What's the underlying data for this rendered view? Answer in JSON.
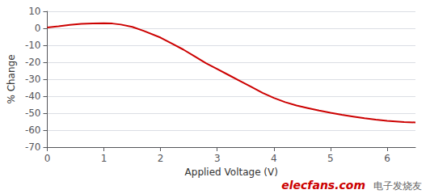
{
  "chart_data": {
    "type": "line",
    "xlabel": "Applied Voltage (V)",
    "ylabel": "% Change",
    "x": [
      0.0,
      0.2,
      0.4,
      0.6,
      0.8,
      1.0,
      1.15,
      1.3,
      1.5,
      1.7,
      2.0,
      2.2,
      2.4,
      2.6,
      2.8,
      3.0,
      3.2,
      3.4,
      3.6,
      3.8,
      4.0,
      4.2,
      4.4,
      4.6,
      4.8,
      5.0,
      5.2,
      5.4,
      5.6,
      5.8,
      6.0,
      6.3,
      6.5
    ],
    "values": [
      0.5,
      1.2,
      2.0,
      2.6,
      2.9,
      3.0,
      2.8,
      2.2,
      0.8,
      -1.5,
      -5.5,
      -9.0,
      -12.5,
      -16.5,
      -20.5,
      -24.0,
      -27.5,
      -31.0,
      -34.5,
      -38.0,
      -41.0,
      -43.5,
      -45.5,
      -47.0,
      -48.5,
      -49.8,
      -51.0,
      -52.0,
      -53.0,
      -53.8,
      -54.5,
      -55.2,
      -55.5
    ],
    "color": "#cc0000",
    "xlim": [
      0,
      6.5
    ],
    "xticks": [
      0,
      1,
      2,
      3,
      4,
      5,
      6
    ],
    "ylim": [
      -70,
      10
    ],
    "yticks": [
      -70,
      -60,
      -50,
      -40,
      -30,
      -20,
      -10,
      0,
      10
    ],
    "grid": true,
    "annotations": [
      {
        "text": "elecfans.com",
        "color": "#cc0000"
      },
      {
        "text": "电子发烧友",
        "color": "#666666"
      }
    ]
  }
}
